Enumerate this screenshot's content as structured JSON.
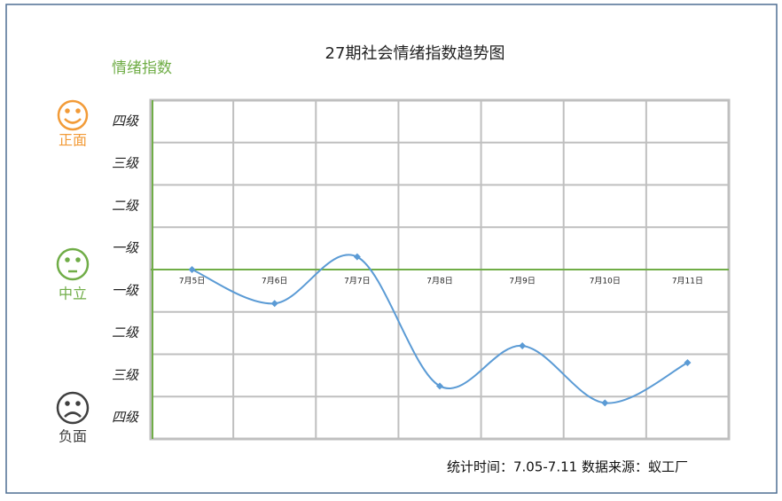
{
  "chart_data": {
    "type": "line",
    "title": "27期社会情绪指数趋势图",
    "y_label": "情绪指数",
    "categories": [
      "7月5日",
      "7月6日",
      "7月7日",
      "7月8日",
      "7月9日",
      "7月10日",
      "7月11日"
    ],
    "series": [
      {
        "name": "情绪指数",
        "color": "#5b9bd5",
        "values": [
          0,
          -0.8,
          0.3,
          -2.75,
          -1.8,
          -3.15,
          -2.2
        ]
      }
    ],
    "ylim": [
      -4,
      4
    ],
    "yticks": [
      {
        "value": 3.5,
        "label": "四级"
      },
      {
        "value": 2.5,
        "label": "三级"
      },
      {
        "value": 1.5,
        "label": "二级"
      },
      {
        "value": 0.5,
        "label": "一级"
      },
      {
        "value": -0.5,
        "label": "一级"
      },
      {
        "value": -1.5,
        "label": "二级"
      },
      {
        "value": -2.5,
        "label": "三级"
      },
      {
        "value": -3.5,
        "label": "四级"
      }
    ],
    "ygrid": [
      -4,
      -3,
      -2,
      -1,
      0,
      1,
      2,
      3,
      4
    ],
    "grid": true,
    "zero_line_color": "#70ad47",
    "moods": [
      {
        "label": "正面",
        "color": "#f29b38"
      },
      {
        "label": "中立",
        "color": "#70ad47"
      },
      {
        "label": "负面",
        "color": "#404040"
      }
    ],
    "footer": "统计时间：7.05-7.11  数据来源：蚁工厂"
  }
}
